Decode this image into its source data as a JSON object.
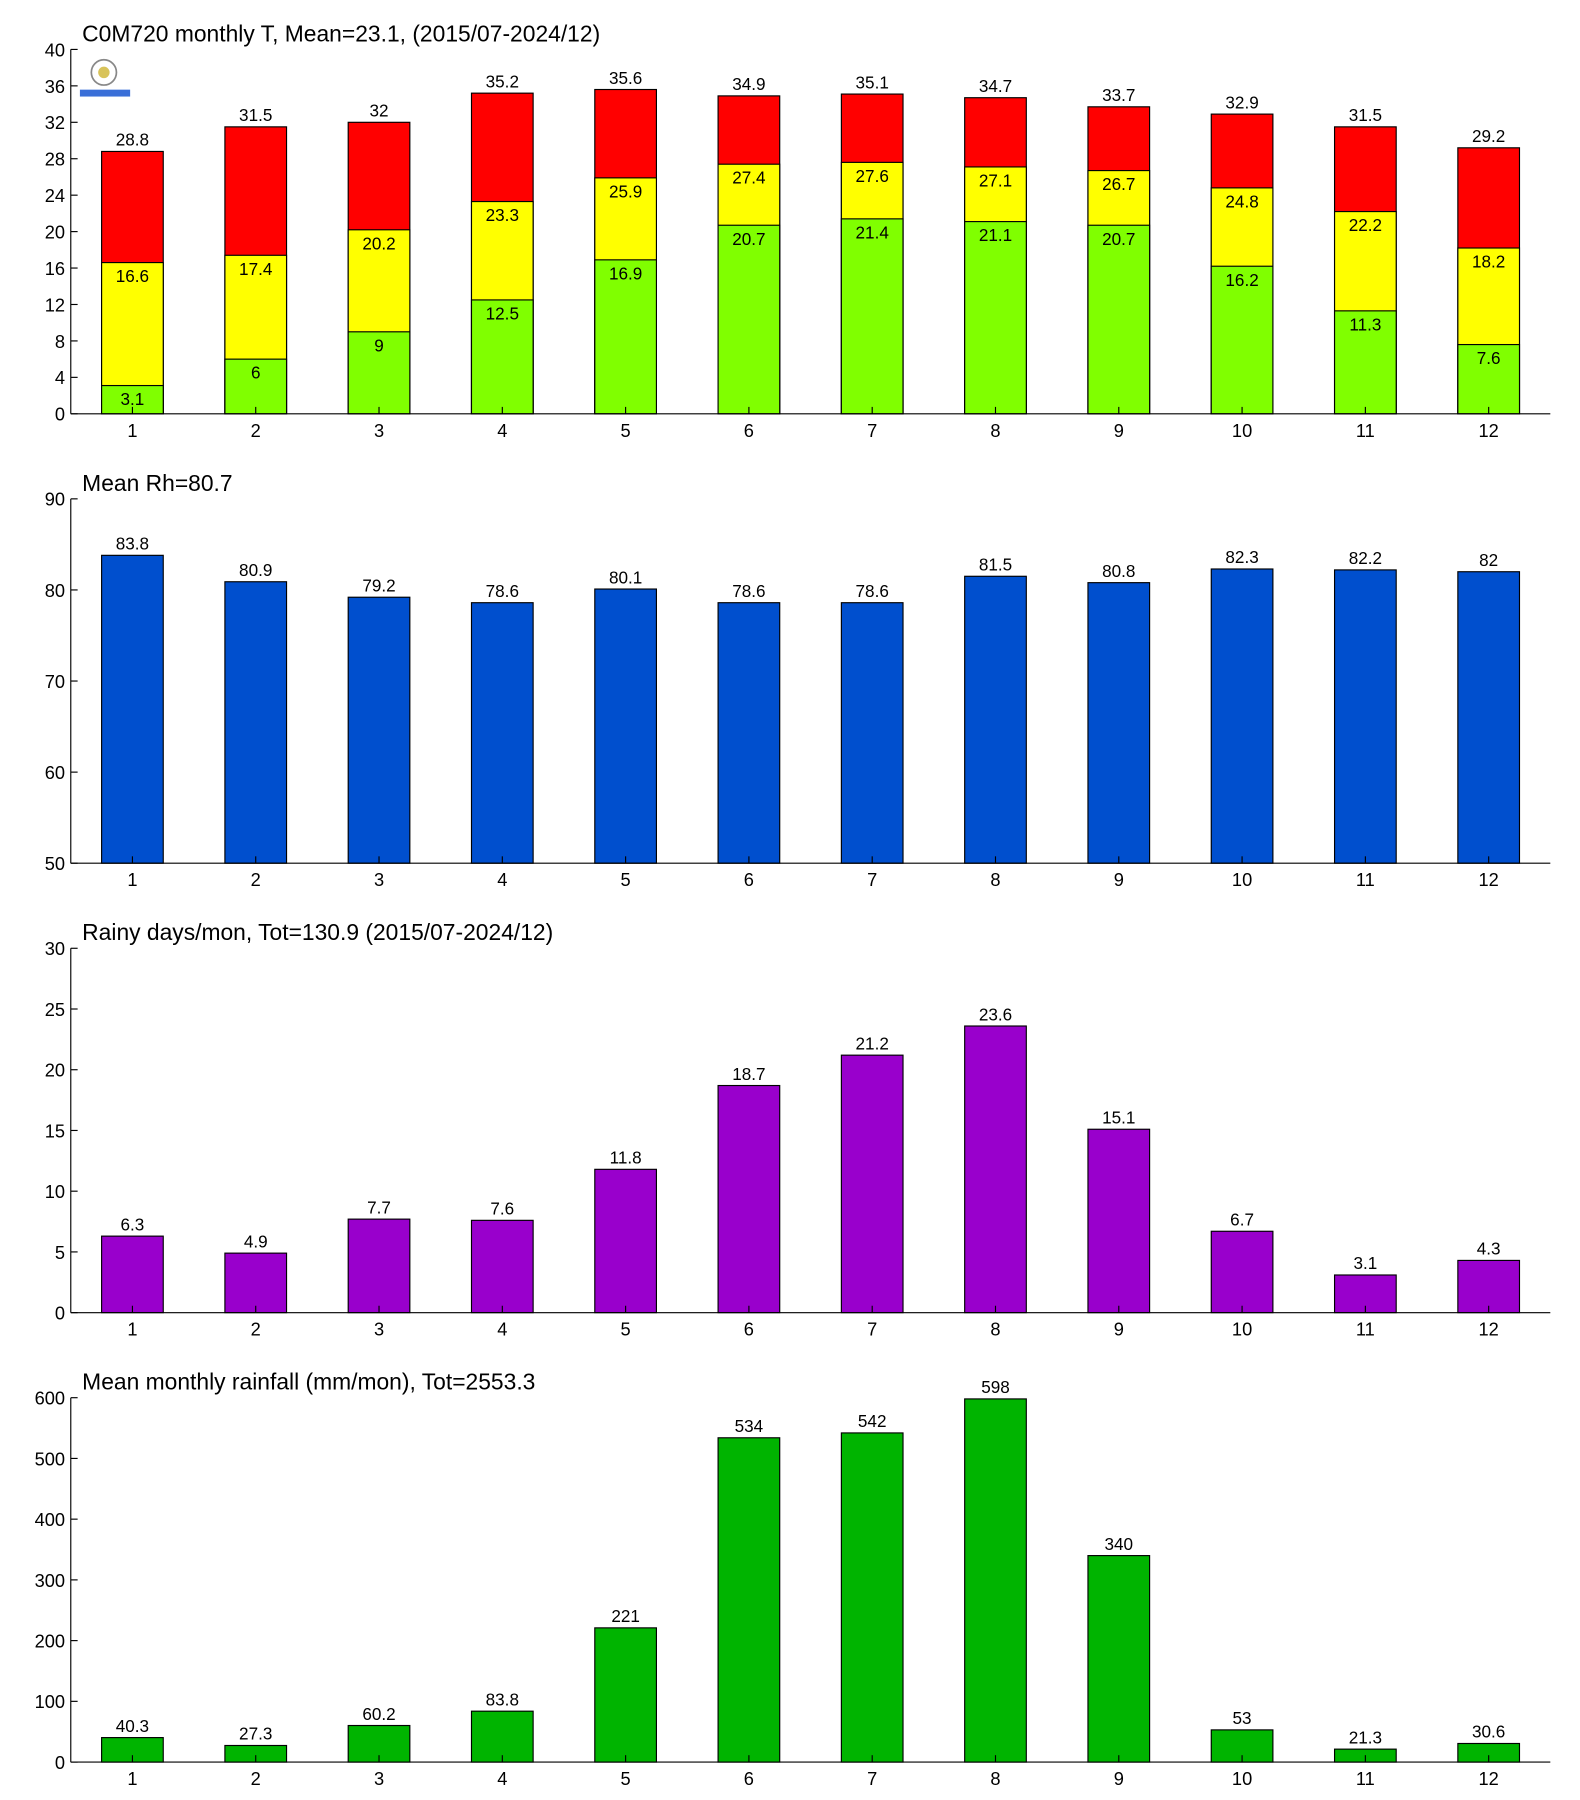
{
  "chart_data": [
    {
      "type": "bar",
      "title": "C0M720 monthly T, Mean=23.1, (2015/07-2024/12)",
      "categories": [
        "1",
        "2",
        "3",
        "4",
        "5",
        "6",
        "7",
        "8",
        "9",
        "10",
        "11",
        "12"
      ],
      "series": [
        {
          "color": "#ff0000",
          "values": [
            28.8,
            31.5,
            32,
            35.2,
            35.6,
            34.9,
            35.1,
            34.7,
            33.7,
            32.9,
            31.5,
            29.2
          ]
        },
        {
          "color": "#ffff00",
          "values": [
            16.6,
            17.4,
            20.2,
            23.3,
            25.9,
            27.4,
            27.6,
            27.1,
            26.7,
            24.8,
            22.2,
            18.2
          ]
        },
        {
          "color": "#80ff00",
          "values": [
            3.1,
            6,
            9,
            12.5,
            16.9,
            20.7,
            21.4,
            21.1,
            20.7,
            16.2,
            11.3,
            7.6
          ]
        }
      ],
      "ylim": [
        0,
        40
      ],
      "yticks": [
        0,
        4,
        8,
        12,
        16,
        20,
        24,
        28,
        32,
        36,
        40
      ]
    },
    {
      "type": "bar",
      "title": "Mean Rh=80.7",
      "categories": [
        "1",
        "2",
        "3",
        "4",
        "5",
        "6",
        "7",
        "8",
        "9",
        "10",
        "11",
        "12"
      ],
      "values": [
        83.8,
        80.9,
        79.2,
        78.6,
        80.1,
        78.6,
        78.6,
        81.5,
        80.8,
        82.3,
        82.2,
        82
      ],
      "color": "#004fce",
      "ylim": [
        50,
        90
      ],
      "yticks": [
        50,
        60,
        70,
        80,
        90
      ]
    },
    {
      "type": "bar",
      "title": "Rainy days/mon, Tot=130.9 (2015/07-2024/12)",
      "categories": [
        "1",
        "2",
        "3",
        "4",
        "5",
        "6",
        "7",
        "8",
        "9",
        "10",
        "11",
        "12"
      ],
      "values": [
        6.3,
        4.9,
        7.7,
        7.6,
        11.8,
        18.7,
        21.2,
        23.6,
        15.1,
        6.7,
        3.1,
        4.3
      ],
      "color": "#9900cc",
      "ylim": [
        0,
        30
      ],
      "yticks": [
        0,
        5,
        10,
        15,
        20,
        25,
        30
      ]
    },
    {
      "type": "bar",
      "title": "Mean monthly rainfall (mm/mon), Tot=2553.3",
      "categories": [
        "1",
        "2",
        "3",
        "4",
        "5",
        "6",
        "7",
        "8",
        "9",
        "10",
        "11",
        "12"
      ],
      "values": [
        40.3,
        27.3,
        60.2,
        83.8,
        221,
        534,
        542,
        598,
        340,
        53,
        21.3,
        30.6
      ],
      "color": "#00b400",
      "ylim": [
        0,
        600
      ],
      "yticks": [
        0,
        100,
        200,
        300,
        400,
        500,
        600
      ]
    }
  ]
}
